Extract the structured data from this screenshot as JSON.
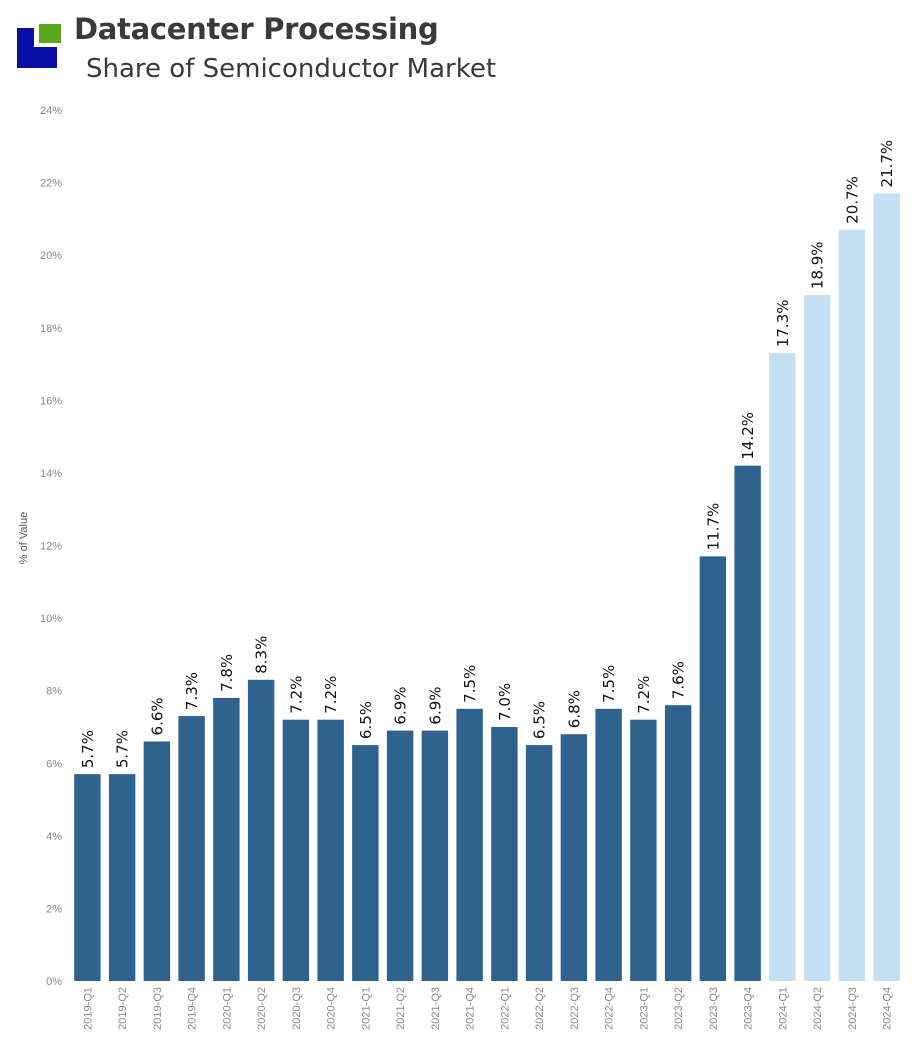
{
  "header": {
    "title": "Datacenter Processing",
    "subtitle": "Share of Semiconductor Market"
  },
  "colors": {
    "logo_blue": "#0a0fa8",
    "logo_green": "#5aa61e",
    "actual_bar": "#2f628c",
    "forecast_bar": "#c4e0f2"
  },
  "chart_data": {
    "type": "bar",
    "title": "Datacenter Processing",
    "subtitle": "Share of Semiconductor Market",
    "xlabel": "",
    "ylabel": "% of Value",
    "ylim": [
      0,
      24
    ],
    "yticks": [
      "0%",
      "2%",
      "4%",
      "6%",
      "8%",
      "10%",
      "12%",
      "14%",
      "16%",
      "18%",
      "20%",
      "22%",
      "24%"
    ],
    "grid": false,
    "legend": "none",
    "categories": [
      "2019-Q1",
      "2019-Q2",
      "2019-Q3",
      "2019-Q4",
      "2020-Q1",
      "2020-Q2",
      "2020-Q3",
      "2020-Q4",
      "2021-Q1",
      "2021-Q2",
      "2021-Q3",
      "2021-Q4",
      "2022-Q1",
      "2022-Q2",
      "2022-Q3",
      "2022-Q4",
      "2023-Q1",
      "2023-Q2",
      "2023-Q3",
      "2023-Q4",
      "2024-Q1",
      "2024-Q2",
      "2024-Q3",
      "2024-Q4"
    ],
    "values": [
      5.7,
      5.7,
      6.6,
      7.3,
      7.8,
      8.3,
      7.2,
      7.2,
      6.5,
      6.9,
      6.9,
      7.5,
      7.0,
      6.5,
      6.8,
      7.5,
      7.2,
      7.6,
      11.7,
      14.2,
      17.3,
      18.9,
      20.7,
      21.7
    ],
    "labels": [
      "5.7%",
      "5.7%",
      "6.6%",
      "7.3%",
      "7.8%",
      "8.3%",
      "7.2%",
      "7.2%",
      "6.5%",
      "6.9%",
      "6.9%",
      "7.5%",
      "7.0%",
      "6.5%",
      "6.8%",
      "7.5%",
      "7.2%",
      "7.6%",
      "11.7%",
      "14.2%",
      "17.3%",
      "18.9%",
      "20.7%",
      "21.7%"
    ],
    "forecast_flags": [
      false,
      false,
      false,
      false,
      false,
      false,
      false,
      false,
      false,
      false,
      false,
      false,
      false,
      false,
      false,
      false,
      false,
      false,
      false,
      false,
      true,
      true,
      true,
      true
    ]
  }
}
